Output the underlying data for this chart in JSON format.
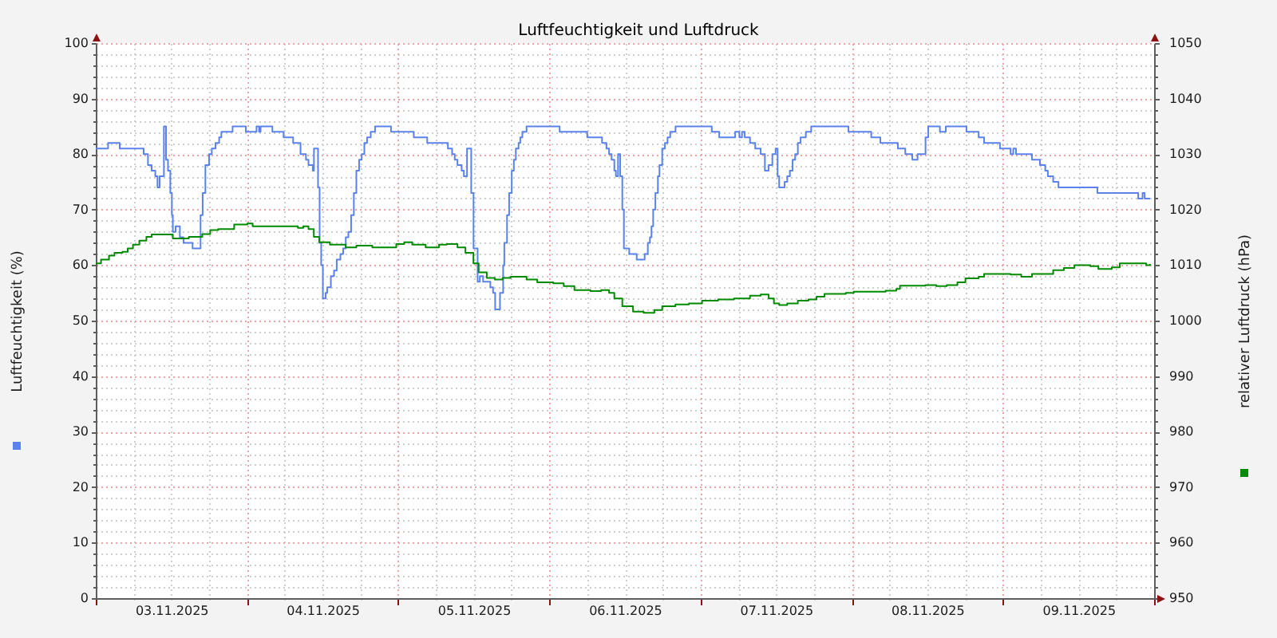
{
  "chart_data": {
    "type": "step",
    "title": "Luftfeuchtigkeit und Luftdruck",
    "ylabel": "Luftfeuchtigkeit (%)",
    "y2label": "relativer Luftdruck (hPa)",
    "xlim": [
      "2025-11-03T00:00",
      "2025-11-10T00:00"
    ],
    "xticks": [
      {
        "value": "2025-11-03T00:00",
        "label": null
      },
      {
        "value": "2025-11-03T06:00",
        "label": null
      },
      {
        "value": "2025-11-03T12:00",
        "label": "03.11.2025"
      },
      {
        "value": "2025-11-03T18:00",
        "label": null
      },
      {
        "value": "2025-11-04T00:00",
        "label": null
      },
      {
        "value": "2025-11-04T06:00",
        "label": null
      },
      {
        "value": "2025-11-04T12:00",
        "label": "04.11.2025"
      },
      {
        "value": "2025-11-04T18:00",
        "label": null
      },
      {
        "value": "2025-11-05T00:00",
        "label": null
      },
      {
        "value": "2025-11-05T06:00",
        "label": null
      },
      {
        "value": "2025-11-05T12:00",
        "label": "05.11.2025"
      },
      {
        "value": "2025-11-05T18:00",
        "label": null
      },
      {
        "value": "2025-11-06T00:00",
        "label": null
      },
      {
        "value": "2025-11-06T06:00",
        "label": null
      },
      {
        "value": "2025-11-06T12:00",
        "label": "06.11.2025"
      },
      {
        "value": "2025-11-06T18:00",
        "label": null
      },
      {
        "value": "2025-11-07T00:00",
        "label": null
      },
      {
        "value": "2025-11-07T06:00",
        "label": null
      },
      {
        "value": "2025-11-07T12:00",
        "label": "07.11.2025"
      },
      {
        "value": "2025-11-07T18:00",
        "label": null
      },
      {
        "value": "2025-11-08T00:00",
        "label": null
      },
      {
        "value": "2025-11-08T06:00",
        "label": null
      },
      {
        "value": "2025-11-08T12:00",
        "label": "08.11.2025"
      },
      {
        "value": "2025-11-08T18:00",
        "label": null
      },
      {
        "value": "2025-11-09T00:00",
        "label": null
      },
      {
        "value": "2025-11-09T06:00",
        "label": null
      },
      {
        "value": "2025-11-09T12:00",
        "label": "09.11.2025"
      },
      {
        "value": "2025-11-09T18:00",
        "label": null
      },
      {
        "value": "2025-11-10T00:00",
        "label": null
      }
    ],
    "ylim": [
      0,
      100
    ],
    "yticks": [
      0,
      {
        "value": 2,
        "label": null
      },
      {
        "value": 4,
        "label": null
      },
      {
        "value": 6,
        "label": null
      },
      {
        "value": 8,
        "label": null
      },
      10,
      {
        "value": 12,
        "label": null
      },
      {
        "value": 14,
        "label": null
      },
      {
        "value": 16,
        "label": null
      },
      {
        "value": 18,
        "label": null
      },
      20,
      {
        "value": 22,
        "label": null
      },
      {
        "value": 24,
        "label": null
      },
      {
        "value": 26,
        "label": null
      },
      {
        "value": 28,
        "label": null
      },
      30,
      {
        "value": 32,
        "label": null
      },
      {
        "value": 34,
        "label": null
      },
      {
        "value": 36,
        "label": null
      },
      {
        "value": 38,
        "label": null
      },
      40,
      {
        "value": 42,
        "label": null
      },
      {
        "value": 44,
        "label": null
      },
      {
        "value": 46,
        "label": null
      },
      {
        "value": 48,
        "label": null
      },
      50,
      {
        "value": 52,
        "label": null
      },
      {
        "value": 54,
        "label": null
      },
      {
        "value": 56,
        "label": null
      },
      {
        "value": 58,
        "label": null
      },
      60,
      {
        "value": 62,
        "label": null
      },
      {
        "value": 64,
        "label": null
      },
      {
        "value": 66,
        "label": null
      },
      {
        "value": 68,
        "label": null
      },
      70,
      {
        "value": 72,
        "label": null
      },
      {
        "value": 74,
        "label": null
      },
      {
        "value": 76,
        "label": null
      },
      {
        "value": 78,
        "label": null
      },
      80,
      {
        "value": 82,
        "label": null
      },
      {
        "value": 84,
        "label": null
      },
      {
        "value": 86,
        "label": null
      },
      {
        "value": 88,
        "label": null
      },
      90,
      {
        "value": 92,
        "label": null
      },
      {
        "value": 94,
        "label": null
      },
      {
        "value": 96,
        "label": null
      },
      {
        "value": 98,
        "label": null
      },
      100
    ],
    "y2lim": [
      950,
      1050
    ],
    "y2ticks": [
      950,
      {
        "value": 952,
        "label": null
      },
      {
        "value": 954,
        "label": null
      },
      {
        "value": 956,
        "label": null
      },
      {
        "value": 958,
        "label": null
      },
      960,
      {
        "value": 962,
        "label": null
      },
      {
        "value": 964,
        "label": null
      },
      {
        "value": 966,
        "label": null
      },
      {
        "value": 968,
        "label": null
      },
      970,
      {
        "value": 972,
        "label": null
      },
      {
        "value": 974,
        "label": null
      },
      {
        "value": 976,
        "label": null
      },
      {
        "value": 978,
        "label": null
      },
      980,
      {
        "value": 982,
        "label": null
      },
      {
        "value": 984,
        "label": null
      },
      {
        "value": 986,
        "label": null
      },
      {
        "value": 988,
        "label": null
      },
      990,
      {
        "value": 992,
        "label": null
      },
      {
        "value": 994,
        "label": null
      },
      {
        "value": 996,
        "label": null
      },
      {
        "value": 998,
        "label": null
      },
      1000,
      {
        "value": 1002,
        "label": null
      },
      {
        "value": 1004,
        "label": null
      },
      {
        "value": 1006,
        "label": null
      },
      {
        "value": 1008,
        "label": null
      },
      1010,
      {
        "value": 1012,
        "label": null
      },
      {
        "value": 1014,
        "label": null
      },
      {
        "value": 1016,
        "label": null
      },
      {
        "value": 1018,
        "label": null
      },
      1020,
      {
        "value": 1022,
        "label": null
      },
      {
        "value": 1024,
        "label": null
      },
      {
        "value": 1026,
        "label": null
      },
      {
        "value": 1028,
        "label": null
      },
      1030,
      {
        "value": 1032,
        "label": null
      },
      {
        "value": 1034,
        "label": null
      },
      {
        "value": 1036,
        "label": null
      },
      {
        "value": 1038,
        "label": null
      },
      1040,
      {
        "value": 1042,
        "label": null
      },
      {
        "value": 1044,
        "label": null
      },
      {
        "value": 1046,
        "label": null
      },
      {
        "value": 1048,
        "label": null
      },
      1050
    ],
    "grid": true,
    "series": [
      {
        "color": "#5b82ec",
        "x": [
          "2025-11-03T00:00",
          "2025-11-03T01:57",
          "2025-11-03T03:48",
          "2025-11-03T07:36",
          "2025-11-03T08:17",
          "2025-11-03T08:52",
          "2025-11-03T09:27",
          "2025-11-03T09:48",
          "2025-11-03T10:08",
          "2025-11-03T10:49",
          "2025-11-03T11:09",
          "2025-11-03T11:28",
          "2025-11-03T11:50",
          "2025-11-03T12:05",
          "2025-11-03T12:14",
          "2025-11-03T12:40",
          "2025-11-03T13:21",
          "2025-11-03T13:56",
          "2025-11-03T15:22",
          "2025-11-03T16:38",
          "2025-11-03T16:58",
          "2025-11-03T17:24",
          "2025-11-03T17:59",
          "2025-11-03T18:25",
          "2025-11-03T19:00",
          "2025-11-03T19:35",
          "2025-11-03T19:56",
          "2025-11-03T21:43",
          "2025-11-03T23:49",
          "2025-11-04T01:31",
          "2025-11-04T01:55",
          "2025-11-04T02:10",
          "2025-11-04T04:02",
          "2025-11-04T05:49",
          "2025-11-04T07:20",
          "2025-11-04T08:30",
          "2025-11-04T09:22",
          "2025-11-04T09:46",
          "2025-11-04T10:27",
          "2025-11-04T10:38",
          "2025-11-04T11:17",
          "2025-11-04T11:32",
          "2025-11-04T11:47",
          "2025-11-04T12:03",
          "2025-11-04T12:29",
          "2025-11-04T12:44",
          "2025-11-04T13:19",
          "2025-11-04T13:49",
          "2025-11-04T14:15",
          "2025-11-04T14:50",
          "2025-11-04T15:16",
          "2025-11-04T15:41",
          "2025-11-04T16:06",
          "2025-11-04T16:32",
          "2025-11-04T16:58",
          "2025-11-04T17:22",
          "2025-11-04T17:48",
          "2025-11-04T18:13",
          "2025-11-04T18:38",
          "2025-11-04T19:04",
          "2025-11-04T19:39",
          "2025-11-04T20:20",
          "2025-11-04T22:52",
          "2025-11-05T02:29",
          "2025-11-05T04:37",
          "2025-11-05T07:54",
          "2025-11-05T08:34",
          "2025-11-05T08:59",
          "2025-11-05T09:25",
          "2025-11-05T10:05",
          "2025-11-05T10:26",
          "2025-11-05T10:56",
          "2025-11-05T11:36",
          "2025-11-05T11:58",
          "2025-11-05T12:37",
          "2025-11-05T12:58",
          "2025-11-05T13:29",
          "2025-11-05T14:38",
          "2025-11-05T15:04",
          "2025-11-05T15:24",
          "2025-11-05T16:10",
          "2025-11-05T16:40",
          "2025-11-05T16:51",
          "2025-11-05T17:17",
          "2025-11-05T17:37",
          "2025-11-05T18:02",
          "2025-11-05T18:22",
          "2025-11-05T18:41",
          "2025-11-05T19:07",
          "2025-11-05T19:23",
          "2025-11-05T19:43",
          "2025-11-05T20:23",
          "2025-11-06T01:38",
          "2025-11-06T06:01",
          "2025-11-06T08:22",
          "2025-11-06T09:04",
          "2025-11-06T09:29",
          "2025-11-06T09:53",
          "2025-11-06T10:19",
          "2025-11-06T10:34",
          "2025-11-06T10:54",
          "2025-11-06T11:15",
          "2025-11-06T11:35",
          "2025-11-06T11:50",
          "2025-11-06T12:41",
          "2025-11-06T13:52",
          "2025-11-06T15:08",
          "2025-11-06T15:38",
          "2025-11-06T15:58",
          "2025-11-06T16:13",
          "2025-11-06T16:29",
          "2025-11-06T16:50",
          "2025-11-06T17:14",
          "2025-11-06T17:29",
          "2025-11-06T17:55",
          "2025-11-06T18:21",
          "2025-11-06T18:46",
          "2025-11-06T19:11",
          "2025-11-06T20:02",
          "2025-11-07T01:47",
          "2025-11-07T02:58",
          "2025-11-07T05:30",
          "2025-11-07T06:10",
          "2025-11-07T06:35",
          "2025-11-07T07:01",
          "2025-11-07T07:51",
          "2025-11-07T08:41",
          "2025-11-07T09:33",
          "2025-11-07T10:13",
          "2025-11-07T10:49",
          "2025-11-07T11:24",
          "2025-11-07T11:55",
          "2025-11-07T12:14",
          "2025-11-07T12:29",
          "2025-11-07T13:21",
          "2025-11-07T13:46",
          "2025-11-07T14:11",
          "2025-11-07T14:37",
          "2025-11-07T15:01",
          "2025-11-07T15:27",
          "2025-11-07T15:53",
          "2025-11-07T16:43",
          "2025-11-07T17:34",
          "2025-11-07T23:29",
          "2025-11-08T03:06",
          "2025-11-08T04:33",
          "2025-11-08T07:20",
          "2025-11-08T08:30",
          "2025-11-08T09:37",
          "2025-11-08T10:27",
          "2025-11-08T11:43",
          "2025-11-08T12:09",
          "2025-11-08T14:00",
          "2025-11-08T14:56",
          "2025-11-08T18:13",
          "2025-11-08T20:09",
          "2025-11-08T21:01",
          "2025-11-08T23:32",
          "2025-11-09T01:13",
          "2025-11-09T01:39",
          "2025-11-09T02:05",
          "2025-11-09T04:37",
          "2025-11-09T05:53",
          "2025-11-09T06:43",
          "2025-11-09T07:08",
          "2025-11-09T07:59",
          "2025-11-09T08:49",
          "2025-11-09T15:00",
          "2025-11-09T21:29",
          "2025-11-09T22:10",
          "2025-11-09T22:30",
          "2025-11-09T23:22"
        ],
        "values": [
          81,
          82,
          81,
          80,
          78,
          77,
          76,
          74,
          76,
          85,
          79,
          77,
          73,
          69,
          66,
          67,
          65,
          64,
          63,
          69,
          73,
          78,
          80,
          81,
          82,
          83,
          84,
          85,
          84,
          85,
          84,
          85,
          84,
          83,
          82,
          80,
          79,
          78,
          77,
          81,
          74,
          64,
          60,
          54,
          55,
          56,
          58,
          59,
          61,
          62,
          63,
          65,
          66,
          69,
          73,
          77,
          79,
          80,
          82,
          83,
          84,
          85,
          84,
          83,
          82,
          81,
          80,
          79,
          78,
          77,
          76,
          81,
          73,
          63,
          57,
          58,
          57,
          56,
          55,
          52,
          55,
          60,
          64,
          69,
          73,
          77,
          79,
          81,
          82,
          83,
          84,
          85,
          84,
          83,
          82,
          81,
          80,
          79,
          77,
          76,
          80,
          76,
          70,
          63,
          62,
          61,
          62,
          64,
          65,
          67,
          70,
          73,
          76,
          78,
          81,
          82,
          83,
          84,
          85,
          84,
          83,
          84,
          83,
          84,
          83,
          82,
          81,
          80,
          77,
          78,
          80,
          81,
          76,
          74,
          75,
          76,
          77,
          79,
          80,
          82,
          83,
          84,
          85,
          84,
          83,
          82,
          81,
          80,
          79,
          80,
          83,
          85,
          84,
          85,
          84,
          83,
          82,
          81,
          80,
          81,
          80,
          79,
          78,
          77,
          76,
          75,
          74,
          73,
          72,
          73,
          72,
          72
        ]
      },
      {
        "color": "#008a00",
        "axis": "y2",
        "x": [
          "2025-11-03T00:00",
          "2025-11-03T00:50",
          "2025-11-03T02:06",
          "2025-11-03T02:58",
          "2025-11-03T04:14",
          "2025-11-03T05:04",
          "2025-11-03T05:54",
          "2025-11-03T06:55",
          "2025-11-03T08:02",
          "2025-11-03T08:52",
          "2025-11-03T11:39",
          "2025-11-03T12:14",
          "2025-11-03T13:56",
          "2025-11-03T14:46",
          "2025-11-03T16:54",
          "2025-11-03T18:10",
          "2025-11-03T19:26",
          "2025-11-03T21:32",
          "2025-11-03T21:58",
          "2025-11-04T00:04",
          "2025-11-04T00:54",
          "2025-11-04T08:05",
          "2025-11-04T08:56",
          "2025-11-04T09:46",
          "2025-11-04T10:37",
          "2025-11-04T11:28",
          "2025-11-04T13:10",
          "2025-11-04T15:41",
          "2025-11-04T17:22",
          "2025-11-04T19:54",
          "2025-11-04T22:26",
          "2025-11-04T23:42",
          "2025-11-05T00:58",
          "2025-11-05T02:14",
          "2025-11-05T04:22",
          "2025-11-05T06:28",
          "2025-11-05T07:44",
          "2025-11-05T09:25",
          "2025-11-05T10:41",
          "2025-11-05T11:57",
          "2025-11-05T12:47",
          "2025-11-05T14:04",
          "2025-11-05T15:20",
          "2025-11-05T16:35",
          "2025-11-05T17:52",
          "2025-11-05T20:23",
          "2025-11-05T22:05",
          "2025-11-06T00:37",
          "2025-11-06T02:17",
          "2025-11-06T03:59",
          "2025-11-06T06:31",
          "2025-11-06T08:13",
          "2025-11-06T09:29",
          "2025-11-06T10:19",
          "2025-11-06T11:35",
          "2025-11-06T13:17",
          "2025-11-06T14:58",
          "2025-11-06T16:40",
          "2025-11-06T17:55",
          "2025-11-06T20:01",
          "2025-11-06T22:09",
          "2025-11-07T00:15",
          "2025-11-07T02:47",
          "2025-11-07T05:19",
          "2025-11-07T07:51",
          "2025-11-07T09:33",
          "2025-11-07T10:49",
          "2025-11-07T11:39",
          "2025-11-07T12:29",
          "2025-11-07T13:45",
          "2025-11-07T15:27",
          "2025-11-07T17:08",
          "2025-11-07T18:25",
          "2025-11-07T19:41",
          "2025-11-07T23:03",
          "2025-11-08T00:19",
          "2025-11-08T05:23",
          "2025-11-08T07:05",
          "2025-11-08T07:40",
          "2025-11-08T11:43",
          "2025-11-08T13:25",
          "2025-11-08T15:05",
          "2025-11-08T16:47",
          "2025-11-08T18:03",
          "2025-11-08T20:09",
          "2025-11-08T21:01",
          "2025-11-09T01:13",
          "2025-11-09T02:55",
          "2025-11-09T04:37",
          "2025-11-09T06:17",
          "2025-11-09T07:59",
          "2025-11-09T09:41",
          "2025-11-09T11:21",
          "2025-11-09T13:53",
          "2025-11-09T15:09",
          "2025-11-09T17:17",
          "2025-11-09T18:33",
          "2025-11-09T21:29",
          "2025-11-09T22:45",
          "2025-11-09T23:22"
        ],
        "values": [
          1010.3,
          1011.0,
          1011.7,
          1012.2,
          1012.4,
          1013.0,
          1013.7,
          1014.4,
          1015.1,
          1015.5,
          1015.5,
          1014.8,
          1014.8,
          1015.1,
          1015.6,
          1016.3,
          1016.5,
          1016.5,
          1017.3,
          1017.5,
          1017.0,
          1016.7,
          1017.0,
          1016.5,
          1015.1,
          1014.1,
          1013.7,
          1013.2,
          1013.5,
          1013.2,
          1013.2,
          1013.8,
          1014.1,
          1013.7,
          1013.2,
          1013.7,
          1013.8,
          1013.2,
          1012.2,
          1010.3,
          1008.7,
          1007.7,
          1007.4,
          1007.7,
          1007.9,
          1007.4,
          1006.9,
          1006.7,
          1006.2,
          1005.5,
          1005.3,
          1005.5,
          1005.0,
          1004.0,
          1002.6,
          1001.6,
          1001.4,
          1001.9,
          1002.6,
          1002.9,
          1003.1,
          1003.6,
          1003.8,
          1004.0,
          1004.5,
          1004.7,
          1004.0,
          1003.1,
          1002.8,
          1003.1,
          1003.6,
          1003.8,
          1004.3,
          1004.8,
          1005.0,
          1005.2,
          1005.4,
          1005.7,
          1006.3,
          1006.4,
          1006.2,
          1006.4,
          1006.9,
          1007.6,
          1007.9,
          1008.4,
          1008.3,
          1007.9,
          1008.4,
          1008.4,
          1009.1,
          1009.5,
          1010.0,
          1009.8,
          1009.3,
          1009.6,
          1010.3,
          1010.3,
          1010.0,
          1010.2
        ]
      }
    ]
  }
}
